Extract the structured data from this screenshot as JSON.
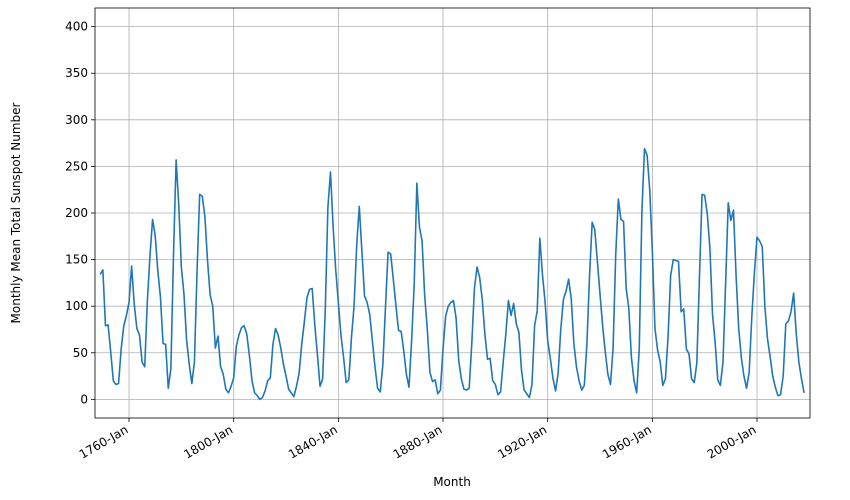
{
  "chart_data": {
    "type": "line",
    "xlabel": "Month",
    "ylabel": "Monthly Mean Total Sunspot Number",
    "color": "#1f77b4",
    "grid": true,
    "x": [
      "1749-Jan",
      "1750-Jan",
      "1751-Jan",
      "1752-Jan",
      "1753-Jan",
      "1754-Jan",
      "1755-Jan",
      "1756-Jan",
      "1757-Jan",
      "1758-Jan",
      "1759-Jan",
      "1760-Jan",
      "1761-Jan",
      "1762-Jan",
      "1763-Jan",
      "1764-Jan",
      "1765-Jan",
      "1766-Jan",
      "1767-Jan",
      "1768-Jan",
      "1769-Jan",
      "1770-Jan",
      "1771-Jan",
      "1772-Jan",
      "1773-Jan",
      "1774-Jan",
      "1775-Jan",
      "1776-Jan",
      "1777-Jan",
      "1778-Jan",
      "1779-Jan",
      "1780-Jan",
      "1781-Jan",
      "1782-Jan",
      "1783-Jan",
      "1784-Jan",
      "1785-Jan",
      "1786-Jan",
      "1787-Jan",
      "1788-Jan",
      "1789-Jan",
      "1790-Jan",
      "1791-Jan",
      "1792-Jan",
      "1793-Jan",
      "1794-Jan",
      "1795-Jan",
      "1796-Jan",
      "1797-Jan",
      "1798-Jan",
      "1799-Jan",
      "1800-Jan",
      "1801-Jan",
      "1802-Jan",
      "1803-Jan",
      "1804-Jan",
      "1805-Jan",
      "1806-Jan",
      "1807-Jan",
      "1808-Jan",
      "1809-Jan",
      "1810-Jan",
      "1811-Jan",
      "1812-Jan",
      "1813-Jan",
      "1814-Jan",
      "1815-Jan",
      "1816-Jan",
      "1817-Jan",
      "1818-Jan",
      "1819-Jan",
      "1820-Jan",
      "1821-Jan",
      "1822-Jan",
      "1823-Jan",
      "1824-Jan",
      "1825-Jan",
      "1826-Jan",
      "1827-Jan",
      "1828-Jan",
      "1829-Jan",
      "1830-Jan",
      "1831-Jan",
      "1832-Jan",
      "1833-Jan",
      "1834-Jan",
      "1835-Jan",
      "1836-Jan",
      "1837-Jan",
      "1838-Jan",
      "1839-Jan",
      "1840-Jan",
      "1841-Jan",
      "1842-Jan",
      "1843-Jan",
      "1844-Jan",
      "1845-Jan",
      "1846-Jan",
      "1847-Jan",
      "1848-Jan",
      "1849-Jan",
      "1850-Jan",
      "1851-Jan",
      "1852-Jan",
      "1853-Jan",
      "1854-Jan",
      "1855-Jan",
      "1856-Jan",
      "1857-Jan",
      "1858-Jan",
      "1859-Jan",
      "1860-Jan",
      "1861-Jan",
      "1862-Jan",
      "1863-Jan",
      "1864-Jan",
      "1865-Jan",
      "1866-Jan",
      "1867-Jan",
      "1868-Jan",
      "1869-Jan",
      "1870-Jan",
      "1871-Jan",
      "1872-Jan",
      "1873-Jan",
      "1874-Jan",
      "1875-Jan",
      "1876-Jan",
      "1877-Jan",
      "1878-Jan",
      "1879-Jan",
      "1880-Jan",
      "1881-Jan",
      "1882-Jan",
      "1883-Jan",
      "1884-Jan",
      "1885-Jan",
      "1886-Jan",
      "1887-Jan",
      "1888-Jan",
      "1889-Jan",
      "1890-Jan",
      "1891-Jan",
      "1892-Jan",
      "1893-Jan",
      "1894-Jan",
      "1895-Jan",
      "1896-Jan",
      "1897-Jan",
      "1898-Jan",
      "1899-Jan",
      "1900-Jan",
      "1901-Jan",
      "1902-Jan",
      "1903-Jan",
      "1904-Jan",
      "1905-Jan",
      "1906-Jan",
      "1907-Jan",
      "1908-Jan",
      "1909-Jan",
      "1910-Jan",
      "1911-Jan",
      "1912-Jan",
      "1913-Jan",
      "1914-Jan",
      "1915-Jan",
      "1916-Jan",
      "1917-Jan",
      "1918-Jan",
      "1919-Jan",
      "1920-Jan",
      "1921-Jan",
      "1922-Jan",
      "1923-Jan",
      "1924-Jan",
      "1925-Jan",
      "1926-Jan",
      "1927-Jan",
      "1928-Jan",
      "1929-Jan",
      "1930-Jan",
      "1931-Jan",
      "1932-Jan",
      "1933-Jan",
      "1934-Jan",
      "1935-Jan",
      "1936-Jan",
      "1937-Jan",
      "1938-Jan",
      "1939-Jan",
      "1940-Jan",
      "1941-Jan",
      "1942-Jan",
      "1943-Jan",
      "1944-Jan",
      "1945-Jan",
      "1946-Jan",
      "1947-Jan",
      "1948-Jan",
      "1949-Jan",
      "1950-Jan",
      "1951-Jan",
      "1952-Jan",
      "1953-Jan",
      "1954-Jan",
      "1955-Jan",
      "1956-Jan",
      "1957-Jan",
      "1958-Jan",
      "1959-Jan",
      "1960-Jan",
      "1961-Jan",
      "1962-Jan",
      "1963-Jan",
      "1964-Jan",
      "1965-Jan",
      "1966-Jan",
      "1967-Jan",
      "1968-Jan",
      "1969-Jan",
      "1970-Jan",
      "1971-Jan",
      "1972-Jan",
      "1973-Jan",
      "1974-Jan",
      "1975-Jan",
      "1976-Jan",
      "1977-Jan",
      "1978-Jan",
      "1979-Jan",
      "1980-Jan",
      "1981-Jan",
      "1982-Jan",
      "1983-Jan",
      "1984-Jan",
      "1985-Jan",
      "1986-Jan",
      "1987-Jan",
      "1988-Jan",
      "1989-Jan",
      "1990-Jan",
      "1991-Jan",
      "1992-Jan",
      "1993-Jan",
      "1994-Jan",
      "1995-Jan",
      "1996-Jan",
      "1997-Jan",
      "1998-Jan",
      "1999-Jan",
      "2000-Jan",
      "2001-Jan",
      "2002-Jan",
      "2003-Jan",
      "2004-Jan",
      "2005-Jan",
      "2006-Jan",
      "2007-Jan",
      "2008-Jan",
      "2009-Jan",
      "2010-Jan",
      "2011-Jan",
      "2012-Jan",
      "2013-Jan",
      "2014-Jan",
      "2015-Jan",
      "2016-Jan",
      "2017-Jan",
      "2018-Jan"
    ],
    "values": [
      134,
      139,
      79,
      80,
      51,
      20,
      16,
      17,
      54,
      79,
      90,
      104,
      143,
      102,
      76,
      69,
      40,
      35,
      105,
      154,
      193,
      176,
      138,
      110,
      60,
      59,
      12,
      33,
      155,
      257,
      209,
      142,
      113,
      64,
      38,
      17,
      40,
      138,
      220,
      218,
      196,
      149,
      112,
      100,
      55,
      68,
      35,
      27,
      11,
      7,
      14,
      23,
      57,
      69,
      77,
      79,
      70,
      47,
      20,
      7,
      4,
      0,
      2,
      9,
      20,
      23,
      59,
      76,
      69,
      55,
      38,
      25,
      11,
      7,
      3,
      14,
      28,
      59,
      83,
      109,
      118,
      119,
      80,
      48,
      14,
      22,
      96,
      206,
      244,
      185,
      139,
      104,
      69,
      45,
      18,
      21,
      66,
      100,
      165,
      207,
      159,
      111,
      104,
      91,
      63,
      35,
      12,
      8,
      37,
      98,
      158,
      156,
      129,
      101,
      74,
      73,
      52,
      27,
      13,
      63,
      124,
      232,
      185,
      170,
      111,
      75,
      29,
      19,
      21,
      6,
      10,
      54,
      89,
      100,
      104,
      106,
      87,
      42,
      22,
      11,
      10,
      12,
      60,
      119,
      142,
      131,
      107,
      70,
      43,
      44,
      20,
      16,
      5,
      8,
      40,
      70,
      106,
      90,
      103,
      81,
      72,
      31,
      10,
      6,
      2,
      16,
      79,
      95,
      173,
      134,
      105,
      63,
      44,
      23,
      9,
      28,
      75,
      107,
      116,
      129,
      108,
      60,
      35,
      20,
      10,
      15,
      60,
      133,
      190,
      182,
      148,
      113,
      79,
      51,
      27,
      16,
      55,
      155,
      215,
      193,
      191,
      119,
      98,
      45,
      20,
      7,
      54,
      201,
      269,
      262,
      225,
      159,
      76,
      53,
      40,
      15,
      22,
      67,
      133,
      150,
      149,
      148,
      94,
      97,
      54,
      49,
      22,
      18,
      39,
      131,
      220,
      219,
      199,
      162,
      91,
      61,
      21,
      15,
      40,
      124,
      211,
      192,
      203,
      133,
      76,
      45,
      25,
      12,
      29,
      88,
      136,
      174,
      170,
      164,
      100,
      65,
      46,
      25,
      13,
      4,
      5,
      25,
      81,
      84,
      94,
      114,
      70,
      40,
      22,
      7
    ],
    "xlim": [
      "1747-Jan",
      "2020-Apr"
    ],
    "xticks": [
      "1760-Jan",
      "1800-Jan",
      "1840-Jan",
      "1880-Jan",
      "1920-Jan",
      "1960-Jan",
      "2000-Jan"
    ],
    "ylim": [
      -20,
      420
    ],
    "yticks": [
      0,
      50,
      100,
      150,
      200,
      250,
      300,
      350,
      400
    ]
  }
}
